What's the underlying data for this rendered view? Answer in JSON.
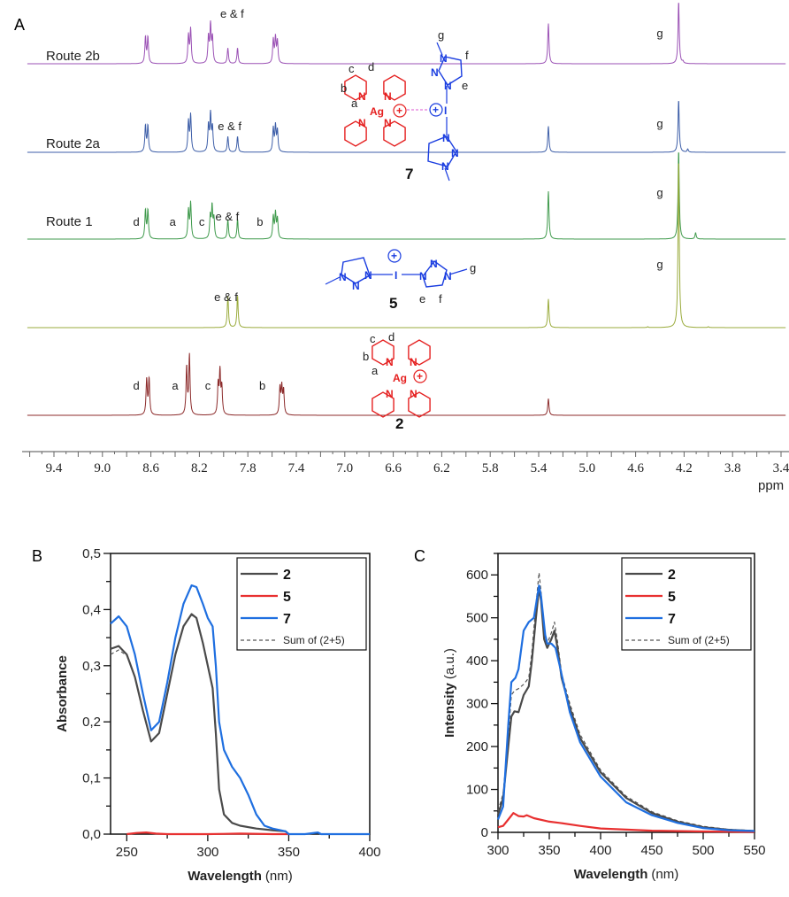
{
  "panel_labels": {
    "a": "A",
    "b": "B",
    "c": "C"
  },
  "chart_data": [
    {
      "type": "line",
      "subtype": "nmr-stacked-spectra",
      "xlabel": "ppm",
      "xlim": [
        9.6,
        3.4
      ],
      "x_reversed": true,
      "xticks": [
        "9.4",
        "9.0",
        "8.6",
        "8.2",
        "7.8",
        "7.4",
        "7.0",
        "6.6",
        "6.2",
        "5.8",
        "5.4",
        "5.0",
        "4.6",
        "4.2",
        "3.8",
        "3.4"
      ],
      "series": [
        {
          "name": "Route 2b",
          "color": "#9b52b5",
          "peaks": [
            [
              8.645,
              0.42
            ],
            [
              8.625,
              0.42
            ],
            [
              8.29,
              0.45
            ],
            [
              8.272,
              0.55
            ],
            [
              8.125,
              0.42
            ],
            [
              8.108,
              0.6
            ],
            [
              8.092,
              0.4
            ],
            [
              7.965,
              0.25
            ],
            [
              7.885,
              0.25
            ],
            [
              7.59,
              0.38
            ],
            [
              7.572,
              0.4
            ],
            [
              7.556,
              0.35
            ],
            [
              5.32,
              0.65
            ],
            [
              4.245,
              1.0
            ],
            [
              4.21,
              0.03
            ]
          ],
          "annotations": [
            {
              "text": "e & f",
              "ppm": 7.93
            },
            {
              "text": "g",
              "ppm": 4.4
            }
          ]
        },
        {
          "name": "Route 2a",
          "color": "#3d5ea8",
          "peaks": [
            [
              8.645,
              0.5
            ],
            [
              8.625,
              0.5
            ],
            [
              8.29,
              0.58
            ],
            [
              8.272,
              0.7
            ],
            [
              8.125,
              0.5
            ],
            [
              8.108,
              0.7
            ],
            [
              8.092,
              0.45
            ],
            [
              7.965,
              0.3
            ],
            [
              7.885,
              0.3
            ],
            [
              7.59,
              0.45
            ],
            [
              7.572,
              0.48
            ],
            [
              7.556,
              0.4
            ],
            [
              5.32,
              0.5
            ],
            [
              4.245,
              1.0
            ],
            [
              4.17,
              0.06
            ]
          ],
          "annotations": [
            {
              "text": "e & f",
              "ppm": 7.95
            },
            {
              "text": "g",
              "ppm": 4.4
            }
          ]
        },
        {
          "name": "Route 1",
          "color": "#3f9a4c",
          "peaks": [
            [
              8.645,
              0.32
            ],
            [
              8.625,
              0.32
            ],
            [
              8.29,
              0.32
            ],
            [
              8.272,
              0.4
            ],
            [
              8.11,
              0.25
            ],
            [
              8.095,
              0.35
            ],
            [
              8.08,
              0.22
            ],
            [
              7.965,
              0.22
            ],
            [
              7.885,
              0.22
            ],
            [
              7.59,
              0.25
            ],
            [
              7.572,
              0.28
            ],
            [
              7.556,
              0.22
            ],
            [
              5.32,
              0.54
            ],
            [
              4.245,
              1.0
            ],
            [
              4.105,
              0.07
            ]
          ],
          "annotations": [
            {
              "text": "d",
              "ppm": 8.72
            },
            {
              "text": "a",
              "ppm": 8.42
            },
            {
              "text": "c",
              "ppm": 8.18
            },
            {
              "text": "e & f",
              "ppm": 7.97
            },
            {
              "text": "b",
              "ppm": 7.7
            },
            {
              "text": "g",
              "ppm": 4.4
            }
          ]
        },
        {
          "name": "",
          "color": "#9aab3c",
          "peaks": [
            [
              7.965,
              0.19
            ],
            [
              7.885,
              0.19
            ],
            [
              5.32,
              0.17
            ],
            [
              4.245,
              1.0
            ],
            [
              4.5,
              0.005
            ],
            [
              4.0,
              0.005
            ]
          ],
          "annotations": [
            {
              "text": "e & f",
              "ppm": 7.98
            },
            {
              "text": "g",
              "ppm": 4.4
            }
          ]
        },
        {
          "name": "",
          "color": "#8c2b2b",
          "peaks": [
            [
              8.635,
              0.6
            ],
            [
              8.615,
              0.6
            ],
            [
              8.305,
              0.8
            ],
            [
              8.282,
              1.0
            ],
            [
              8.045,
              0.5
            ],
            [
              8.03,
              0.7
            ],
            [
              8.015,
              0.45
            ],
            [
              7.535,
              0.45
            ],
            [
              7.52,
              0.45
            ],
            [
              7.505,
              0.4
            ],
            [
              5.32,
              0.28
            ]
          ],
          "annotations": [
            {
              "text": "d",
              "ppm": 8.72
            },
            {
              "text": "a",
              "ppm": 8.4
            },
            {
              "text": "c",
              "ppm": 8.13
            },
            {
              "text": "b",
              "ppm": 7.68
            }
          ]
        }
      ],
      "structures": {
        "s7": {
          "compound": "7",
          "ring_labels": [
            "c",
            "d",
            "b",
            "a"
          ],
          "metal": "Ag",
          "charge": "+",
          "n": "N",
          "iodine": "I",
          "triazole_labels": [
            "g",
            "f",
            "e"
          ]
        },
        "s5": {
          "compound": "5",
          "n": "N",
          "iodine": "I",
          "charge": "+",
          "triazole_labels": [
            "g",
            "e",
            "f"
          ]
        },
        "s2": {
          "compound": "2",
          "ring_labels": [
            "c",
            "d",
            "b",
            "a"
          ],
          "metal": "Ag",
          "charge": "+",
          "n": "N"
        }
      }
    },
    {
      "type": "line",
      "xlabel": "Wavelength",
      "xlabel_unit": "(nm)",
      "ylabel": "Absorbance",
      "xlim": [
        240,
        400
      ],
      "ylim": [
        0,
        0.5
      ],
      "xticks": [
        "250",
        "300",
        "350",
        "400"
      ],
      "yticks": [
        "0,0",
        "0,1",
        "0,2",
        "0,3",
        "0,4",
        "0,5"
      ],
      "legend_position": "top-right",
      "series": [
        {
          "name": "2",
          "color": "#4a4a4a",
          "style": "solid",
          "x": [
            240,
            245,
            250,
            255,
            260,
            265,
            270,
            275,
            280,
            285,
            290,
            293,
            297,
            300,
            303,
            305,
            307,
            310,
            315,
            320,
            330,
            340,
            348,
            350
          ],
          "y": [
            0.33,
            0.335,
            0.32,
            0.28,
            0.22,
            0.165,
            0.18,
            0.25,
            0.32,
            0.37,
            0.392,
            0.385,
            0.34,
            0.3,
            0.26,
            0.18,
            0.08,
            0.035,
            0.02,
            0.015,
            0.01,
            0.007,
            0.005,
            0.0
          ]
        },
        {
          "name": "5",
          "color": "#e83030",
          "style": "solid",
          "x": [
            250,
            256,
            262,
            268,
            275,
            300,
            320,
            340,
            350
          ],
          "y": [
            0.0,
            0.002,
            0.003,
            0.001,
            0.0,
            0.0,
            0.001,
            0.0,
            0.0
          ]
        },
        {
          "name": "7",
          "color": "#1f6fe0",
          "style": "solid",
          "x": [
            240,
            245,
            250,
            255,
            260,
            265,
            270,
            275,
            280,
            285,
            290,
            293,
            297,
            300,
            303,
            305,
            307,
            310,
            315,
            320,
            325,
            330,
            335,
            340,
            348,
            350,
            360,
            368,
            370,
            400
          ],
          "y": [
            0.375,
            0.388,
            0.37,
            0.32,
            0.25,
            0.185,
            0.2,
            0.27,
            0.35,
            0.41,
            0.443,
            0.44,
            0.41,
            0.385,
            0.37,
            0.3,
            0.2,
            0.15,
            0.12,
            0.1,
            0.07,
            0.035,
            0.015,
            0.01,
            0.005,
            0.0,
            0.0,
            0.003,
            0.0,
            0.0
          ]
        },
        {
          "name": "Sum of (2+5)",
          "color": "#555555",
          "style": "dashed",
          "x": [
            240,
            245,
            250,
            255,
            260,
            265,
            270,
            275,
            280,
            285,
            290,
            293,
            297,
            300,
            303,
            305,
            307,
            310,
            315,
            320,
            330,
            340,
            348
          ],
          "y": [
            0.32,
            0.328,
            0.318,
            0.28,
            0.22,
            0.166,
            0.18,
            0.25,
            0.32,
            0.37,
            0.39,
            0.385,
            0.34,
            0.3,
            0.26,
            0.18,
            0.08,
            0.035,
            0.02,
            0.015,
            0.01,
            0.007,
            0.005
          ]
        }
      ]
    },
    {
      "type": "line",
      "xlabel": "Wavelength",
      "xlabel_unit": "(nm)",
      "ylabel": "Intensity",
      "ylabel_unit": "(a.u.)",
      "xlim": [
        300,
        550
      ],
      "ylim": [
        0,
        650
      ],
      "xticks": [
        "300",
        "350",
        "400",
        "450",
        "500",
        "550"
      ],
      "yticks": [
        "0",
        "100",
        "200",
        "300",
        "400",
        "500",
        "600"
      ],
      "legend_position": "top-right",
      "series": [
        {
          "name": "2",
          "color": "#4a4a4a",
          "style": "solid",
          "x": [
            300,
            305,
            310,
            313,
            316,
            320,
            325,
            330,
            333,
            337,
            340,
            342,
            345,
            348,
            352,
            355,
            358,
            362,
            370,
            380,
            400,
            425,
            450,
            475,
            500,
            525,
            550
          ],
          "y": [
            40,
            80,
            200,
            270,
            282,
            280,
            320,
            340,
            400,
            500,
            570,
            540,
            450,
            430,
            450,
            470,
            430,
            360,
            290,
            220,
            140,
            80,
            45,
            25,
            12,
            6,
            3
          ]
        },
        {
          "name": "5",
          "color": "#e83030",
          "style": "solid",
          "x": [
            300,
            305,
            310,
            315,
            320,
            325,
            328,
            335,
            350,
            360,
            380,
            400,
            450,
            500,
            550
          ],
          "y": [
            12,
            15,
            30,
            45,
            38,
            37,
            40,
            33,
            25,
            22,
            15,
            9,
            4,
            2,
            1
          ]
        },
        {
          "name": "7",
          "color": "#1f6fe0",
          "style": "solid",
          "x": [
            300,
            305,
            310,
            313,
            317,
            320,
            325,
            330,
            335,
            340,
            342,
            346,
            348,
            352,
            356,
            360,
            370,
            380,
            400,
            425,
            450,
            475,
            500,
            525,
            550
          ],
          "y": [
            30,
            60,
            250,
            350,
            360,
            380,
            470,
            490,
            500,
            575,
            550,
            460,
            440,
            440,
            430,
            390,
            280,
            210,
            130,
            70,
            40,
            22,
            10,
            5,
            3
          ]
        },
        {
          "name": "Sum of (2+5)",
          "color": "#555555",
          "style": "dashed",
          "x": [
            300,
            305,
            310,
            313,
            316,
            320,
            325,
            330,
            333,
            337,
            340,
            342,
            345,
            348,
            352,
            355,
            358,
            362,
            370,
            380,
            400,
            425,
            450,
            475,
            500,
            525,
            550
          ],
          "y": [
            50,
            90,
            220,
            320,
            330,
            335,
            345,
            360,
            420,
            530,
            605,
            560,
            460,
            440,
            465,
            490,
            445,
            370,
            300,
            228,
            145,
            84,
            48,
            27,
            14,
            7,
            4
          ]
        }
      ]
    }
  ]
}
